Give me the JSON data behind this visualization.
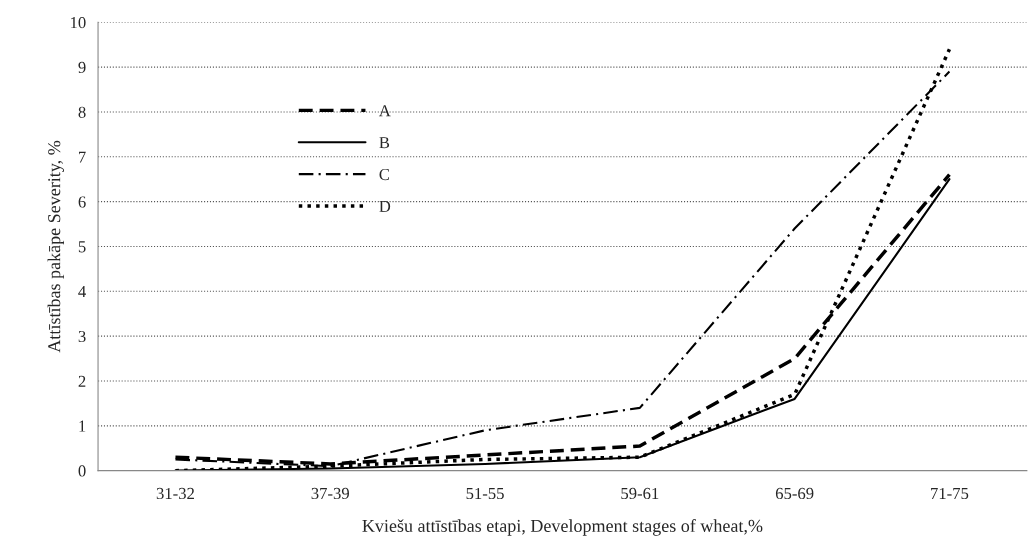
{
  "chart_data": {
    "type": "line",
    "xlabel": "Kviešu attīstības etapi, Development stages of wheat,%",
    "ylabel": "Attīstības pakāpe Severity, %",
    "categories": [
      "31-32",
      "37-39",
      "51-55",
      "59-61",
      "65-69",
      "71-75"
    ],
    "series": [
      {
        "name": "A",
        "color": "#000000",
        "line_style": "dashed",
        "values": [
          0.3,
          0.15,
          0.35,
          0.55,
          2.5,
          6.6
        ]
      },
      {
        "name": "B",
        "color": "#000000",
        "line_style": "solid",
        "values": [
          0.0,
          0.05,
          0.15,
          0.3,
          1.6,
          6.5
        ]
      },
      {
        "name": "C",
        "color": "#000000",
        "line_style": "dashdot",
        "values": [
          0.25,
          0.1,
          0.9,
          1.4,
          5.4,
          8.9
        ]
      },
      {
        "name": "D",
        "color": "#000000",
        "line_style": "dotted",
        "values": [
          0.0,
          0.1,
          0.25,
          0.3,
          1.7,
          9.4
        ]
      }
    ],
    "ylim": [
      0,
      10
    ],
    "yticks": [
      0,
      1,
      2,
      3,
      4,
      5,
      6,
      7,
      8,
      9,
      10
    ],
    "grid": "y",
    "legend": "top left",
    "marker": "none"
  }
}
